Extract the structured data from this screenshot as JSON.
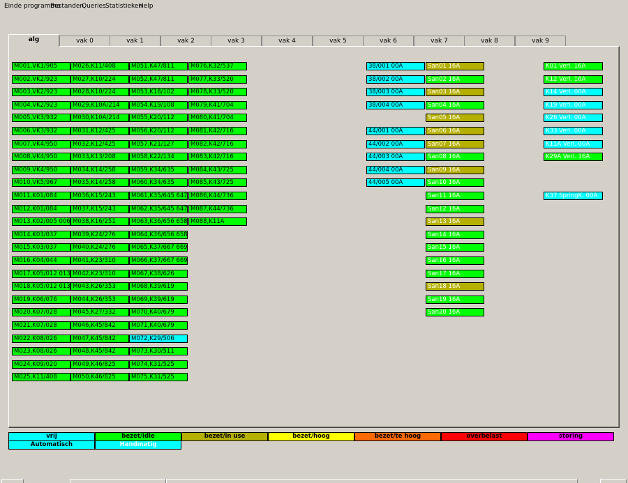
{
  "menu": [
    "Einde programma",
    "Bestanden",
    "Queries",
    "Statistieken",
    "Help"
  ],
  "tabs": [
    "alg",
    "vak 0",
    "vak 1",
    "vak 2",
    "vak 3",
    "vak 4",
    "vak 5",
    "vak 6",
    "vak 7",
    "vak 8",
    "vak 9"
  ],
  "active_tab": "alg",
  "columns": [
    [
      "M001,VK1/905",
      "M002,VK2/923",
      "M003,VK2/923",
      "M004,VK2/923",
      "M005,VK3/932",
      "M006,VK3/932",
      "M007,VK4/950",
      "M008,VK4/950",
      "M009,VK4/950",
      "M010,VK5/967",
      "M011,K01/084",
      "M012,K01/084",
      "M013,K02/005 006",
      "M014,K03/037",
      "M015,K03/037",
      "M016,K04/044",
      "M017,K05/012 013",
      "M018,K05/012 013",
      "M019,K06/076",
      "M020,K07/028",
      "M021,K07/028",
      "M022,K08/026",
      "M023,K08/026",
      "M024,K09/020",
      "M025,K11/408"
    ],
    [
      "M026,K11/408",
      "M027,K10/224",
      "M028,K10/224",
      "M029,K10A/214",
      "M030,K10A/214",
      "M031,K12/425",
      "M032,K12/425",
      "M033,K13/208",
      "M034,K14/258",
      "M035,K14/258",
      "M036,K15/243",
      "M037,K15/243",
      "M038,K16/251",
      "M039,K24/276",
      "M040,K24/276",
      "M041,K23/310",
      "M042,K23/310",
      "M043,K26/353",
      "M044,K26/353",
      "M045,K27/332",
      "M046,K45/842",
      "M047,K45/842",
      "M048,K45/842",
      "M049,K46/825",
      "M050,K46/825"
    ],
    [
      "M051,K47/811",
      "M052,K47/811",
      "M053,K18/102",
      "M054,K19/108",
      "M055,K20/112",
      "M056,K20/112",
      "M057,K21/127",
      "M058,K22/134",
      "M059,K34/635",
      "M060,K34/635",
      "M061,K35/645 647",
      "M062,K35/645 647",
      "M063,K36/656 658",
      "M064,K36/656 658",
      "M065,K37/667 669",
      "M066,K37/667 669",
      "M067,K38/626",
      "M068,K39/619",
      "M069,K39/619",
      "M070,K40/679",
      "M071,K40/679",
      "M072,K29/506",
      "M073,K30/511",
      "M074,K31/525",
      "M075,K31/525"
    ],
    [
      "M076,K32/537",
      "M077,K33/520",
      "M078,K33/520",
      "M079,K41/704",
      "M080,K41/704",
      "M081,K42/716",
      "M082,K42/716",
      "M083,K42/716",
      "M084,K43/725",
      "M085,K43/725",
      "M086,K44/736",
      "M087,K44/736",
      "M088,K11A"
    ]
  ],
  "column_colors": [
    [],
    [],
    {
      "21": "cyan"
    },
    []
  ],
  "col5": [
    {
      "label": "38/001    00A",
      "row": 0
    },
    {
      "label": "38/002    00A",
      "row": 1
    },
    {
      "label": "38/003    00A",
      "row": 2
    },
    {
      "label": "38/004    00A",
      "row": 3
    },
    {
      "label": "44/001    00A",
      "row": 5
    },
    {
      "label": "44/002    00A",
      "row": 6
    },
    {
      "label": "44/003    00A",
      "row": 7
    },
    {
      "label": "44/004    00A",
      "row": 8
    },
    {
      "label": "44/005    00A",
      "row": 9
    }
  ],
  "col6": [
    {
      "label": "San01    16A",
      "color": "olive"
    },
    {
      "label": "San02    16A",
      "color": "greenw"
    },
    {
      "label": "San03    16A",
      "color": "olive"
    },
    {
      "label": "San04    16A",
      "color": "greenw"
    },
    {
      "label": "San05    16A",
      "color": "olive"
    },
    {
      "label": "San06    16A",
      "color": "olive"
    },
    {
      "label": "San07    16A",
      "color": "olive"
    },
    {
      "label": "San08    16A",
      "color": "greenw"
    },
    {
      "label": "San09    16A",
      "color": "olive"
    },
    {
      "label": "San10    16A",
      "color": "greenw"
    },
    {
      "label": "San11    16A",
      "color": "greenw"
    },
    {
      "label": "San12    16A",
      "color": "greenw"
    },
    {
      "label": "San13    16A",
      "color": "olive"
    },
    {
      "label": "San14    16A",
      "color": "greenw"
    },
    {
      "label": "San15    16A",
      "color": "greenw"
    },
    {
      "label": "San16    16A",
      "color": "greenw"
    },
    {
      "label": "San17    16A",
      "color": "greenw"
    },
    {
      "label": "San18    16A",
      "color": "olive"
    },
    {
      "label": "San19    16A",
      "color": "greenw"
    },
    {
      "label": "San20    16A",
      "color": "greenw"
    }
  ],
  "col7": [
    {
      "label": "K01    Verl.      16A",
      "row": 0,
      "color": "greenw"
    },
    {
      "label": "K12    Verl.      16A",
      "row": 1,
      "color": "greenw"
    },
    {
      "label": "K14    Verl.      00A",
      "row": 2,
      "color": "cyanw"
    },
    {
      "label": "K19    Verl.      00A",
      "row": 3,
      "color": "cyanw"
    },
    {
      "label": "K26    Verl.      00A",
      "row": 4,
      "color": "cyanw"
    },
    {
      "label": "K33    Verl.      00A",
      "row": 5,
      "color": "cyanw"
    },
    {
      "label": "K11A  Verl.      00A",
      "row": 6,
      "color": "cyanw"
    },
    {
      "label": "K29A  Verl.      16A",
      "row": 7,
      "color": "greenw"
    },
    {
      "label": "K37 SpringK.    00A",
      "row": 10,
      "color": "cyanw"
    }
  ],
  "legend": [
    {
      "label": "vrij",
      "color": "#00ffff",
      "text": "#000000"
    },
    {
      "label": "bezet/idle",
      "color": "#00ff00",
      "text": "#000000"
    },
    {
      "label": "bezet/in use",
      "color": "#b5b000",
      "text": "#000000"
    },
    {
      "label": "bezet/hoog",
      "color": "#ffff00",
      "text": "#000000"
    },
    {
      "label": "bezet/te hoog",
      "color": "#ff6a00",
      "text": "#000000"
    },
    {
      "label": "overbelast",
      "color": "#ff0000",
      "text": "#000000"
    },
    {
      "label": "storing",
      "color": "#ff00ff",
      "text": "#000000"
    }
  ],
  "legend2": [
    {
      "label": "Automatisch",
      "color": "#00ffff",
      "text": "#000000"
    },
    {
      "label": "Handmatig",
      "color": "#00ffff",
      "text": "#ffffff"
    }
  ]
}
